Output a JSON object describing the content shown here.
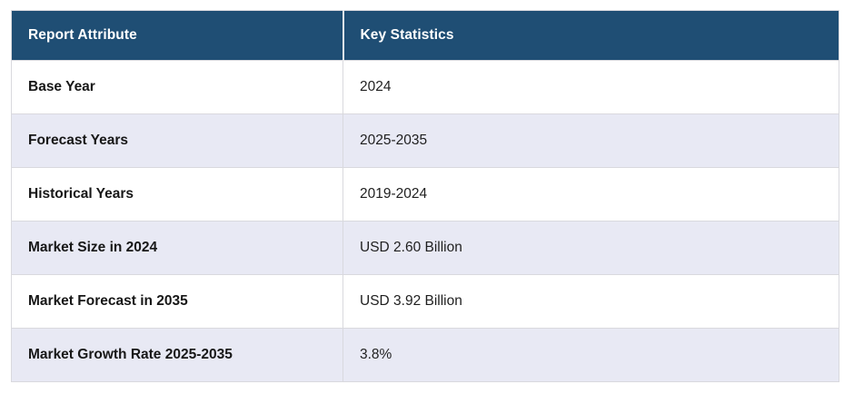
{
  "table": {
    "columns": [
      {
        "label": "Report Attribute"
      },
      {
        "label": "Key Statistics"
      }
    ],
    "rows": [
      {
        "attribute": "Base Year",
        "value": "2024"
      },
      {
        "attribute": "Forecast Years",
        "value": "2025-2035"
      },
      {
        "attribute": "Historical Years",
        "value": "2019-2024"
      },
      {
        "attribute": "Market Size in 2024",
        "value": "USD 2.60 Billion"
      },
      {
        "attribute": "Market Forecast in 2035",
        "value": "USD 3.92 Billion"
      },
      {
        "attribute": "Market Growth Rate 2025-2035",
        "value": "3.8%"
      }
    ]
  },
  "colors": {
    "header_bg": "#1f4e74",
    "header_text": "#ffffff",
    "alt_row_bg": "#e8e9f4",
    "row_bg": "#ffffff",
    "border": "#d9d9de",
    "body_text": "#1f1f1f"
  }
}
